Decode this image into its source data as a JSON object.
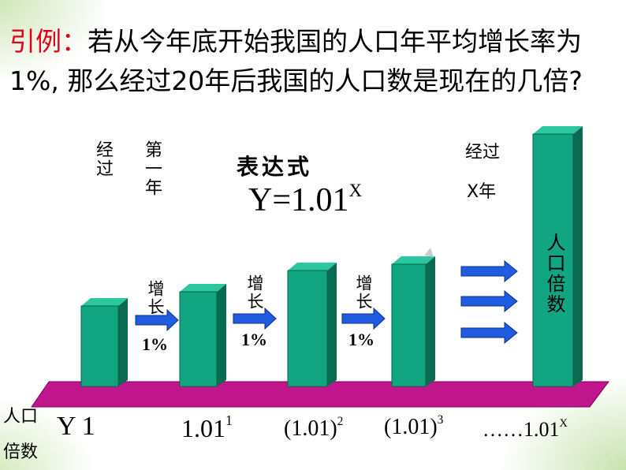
{
  "title": {
    "label": "引例：",
    "text": "若从今年底开始我国的人口年平均增长率为1%, 那么经过20年后我国的人口数是现在的几倍?"
  },
  "first_year": {
    "passed": "经过",
    "year": "第一年"
  },
  "expression": {
    "label": "表达式",
    "base": "Y=1.01",
    "exponent": "X"
  },
  "after_x_years": {
    "passed": "经过",
    "years": "X年"
  },
  "bar_label": "人口倍数",
  "growth_steps": [
    {
      "label": "增长",
      "rate": "1%"
    },
    {
      "label": "增长",
      "rate": "1%"
    },
    {
      "label": "增长",
      "rate": "1%"
    }
  ],
  "row_label": {
    "top": "人口",
    "bottom": "倍数"
  },
  "multiples": [
    {
      "base": "Y 1",
      "exponent": null
    },
    {
      "base": "1.01",
      "exponent": "1"
    },
    {
      "base": "(1.01)",
      "exponent": "2"
    },
    {
      "base": "(1.01)",
      "exponent": "3"
    },
    {
      "base": "……1.01",
      "exponent": "X"
    }
  ]
}
